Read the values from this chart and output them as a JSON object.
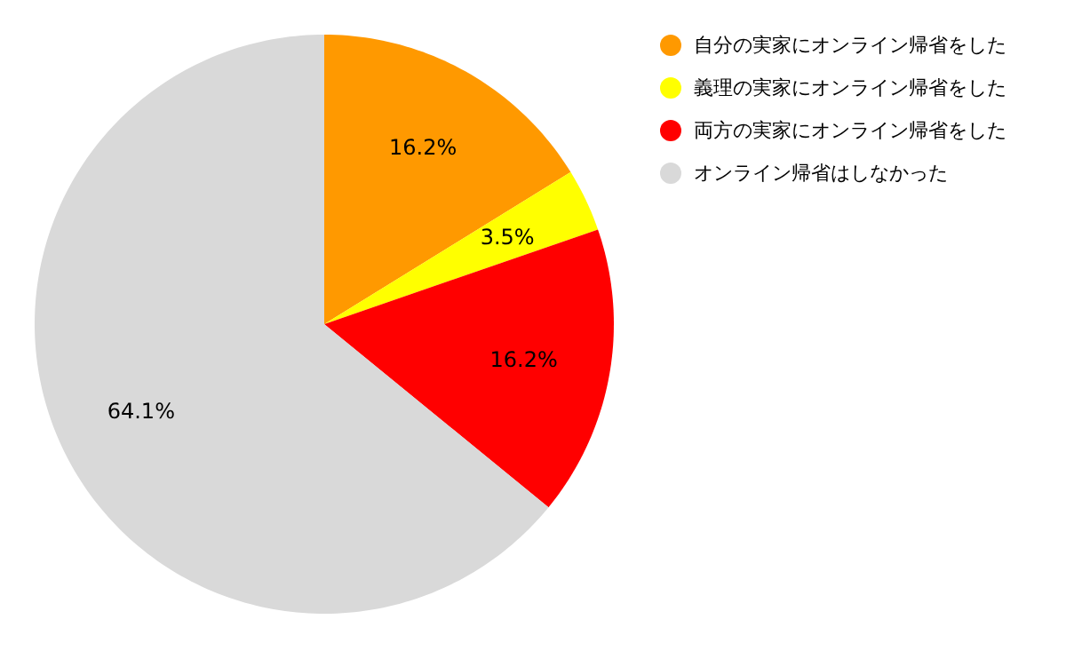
{
  "chart_data": {
    "type": "pie",
    "categories": [
      "自分の実家にオンライン帰省をした",
      "義理の実家にオンライン帰省をした",
      "両方の実家にオンライン帰省をした",
      "オンライン帰省はしなかった"
    ],
    "values": [
      16.2,
      3.5,
      16.2,
      64.1
    ],
    "value_labels": [
      "16.2%",
      "3.5%",
      "16.2%",
      "64.1%"
    ],
    "colors": [
      "#ff9900",
      "#ffff00",
      "#ff0000",
      "#d9d9d9"
    ],
    "legend": "right"
  }
}
